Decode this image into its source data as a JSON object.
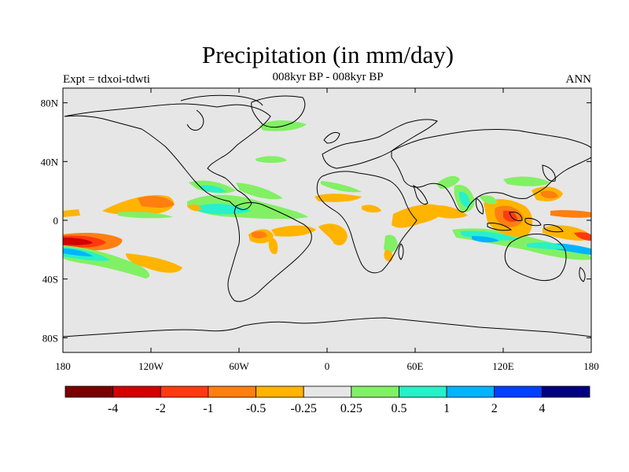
{
  "header": {
    "title": "Precipitation (in mm/day)",
    "subtitle": "008kyr BP - 008kyr BP",
    "left_label": "Expt = tdxoi-tdwti",
    "right_label": "ANN"
  },
  "axes": {
    "y_ticks": [
      {
        "lat": 80,
        "label": "80N"
      },
      {
        "lat": 40,
        "label": "40N"
      },
      {
        "lat": 0,
        "label": "0"
      },
      {
        "lat": -40,
        "label": "40S"
      },
      {
        "lat": -80,
        "label": "80S"
      }
    ],
    "x_ticks": [
      {
        "lon": -180,
        "label": "180"
      },
      {
        "lon": -120,
        "label": "120W"
      },
      {
        "lon": -60,
        "label": "60W"
      },
      {
        "lon": 0,
        "label": "0"
      },
      {
        "lon": 60,
        "label": "60E"
      },
      {
        "lon": 120,
        "label": "120E"
      },
      {
        "lon": 180,
        "label": "180"
      }
    ]
  },
  "colorbar": {
    "colors": [
      "#7a0000",
      "#d20000",
      "#ff3a10",
      "#ff7f10",
      "#ffb400",
      "#e6e6e6",
      "#82f064",
      "#28f0c8",
      "#00b4ff",
      "#0040ff",
      "#000080"
    ],
    "labels": [
      "-4",
      "-2",
      "-1",
      "-0.5",
      "-0.25",
      "0.25",
      "0.5",
      "1",
      "2",
      "4"
    ]
  },
  "colors": {
    "background_fill": "#e6e6e6",
    "coastline": "#000000"
  }
}
